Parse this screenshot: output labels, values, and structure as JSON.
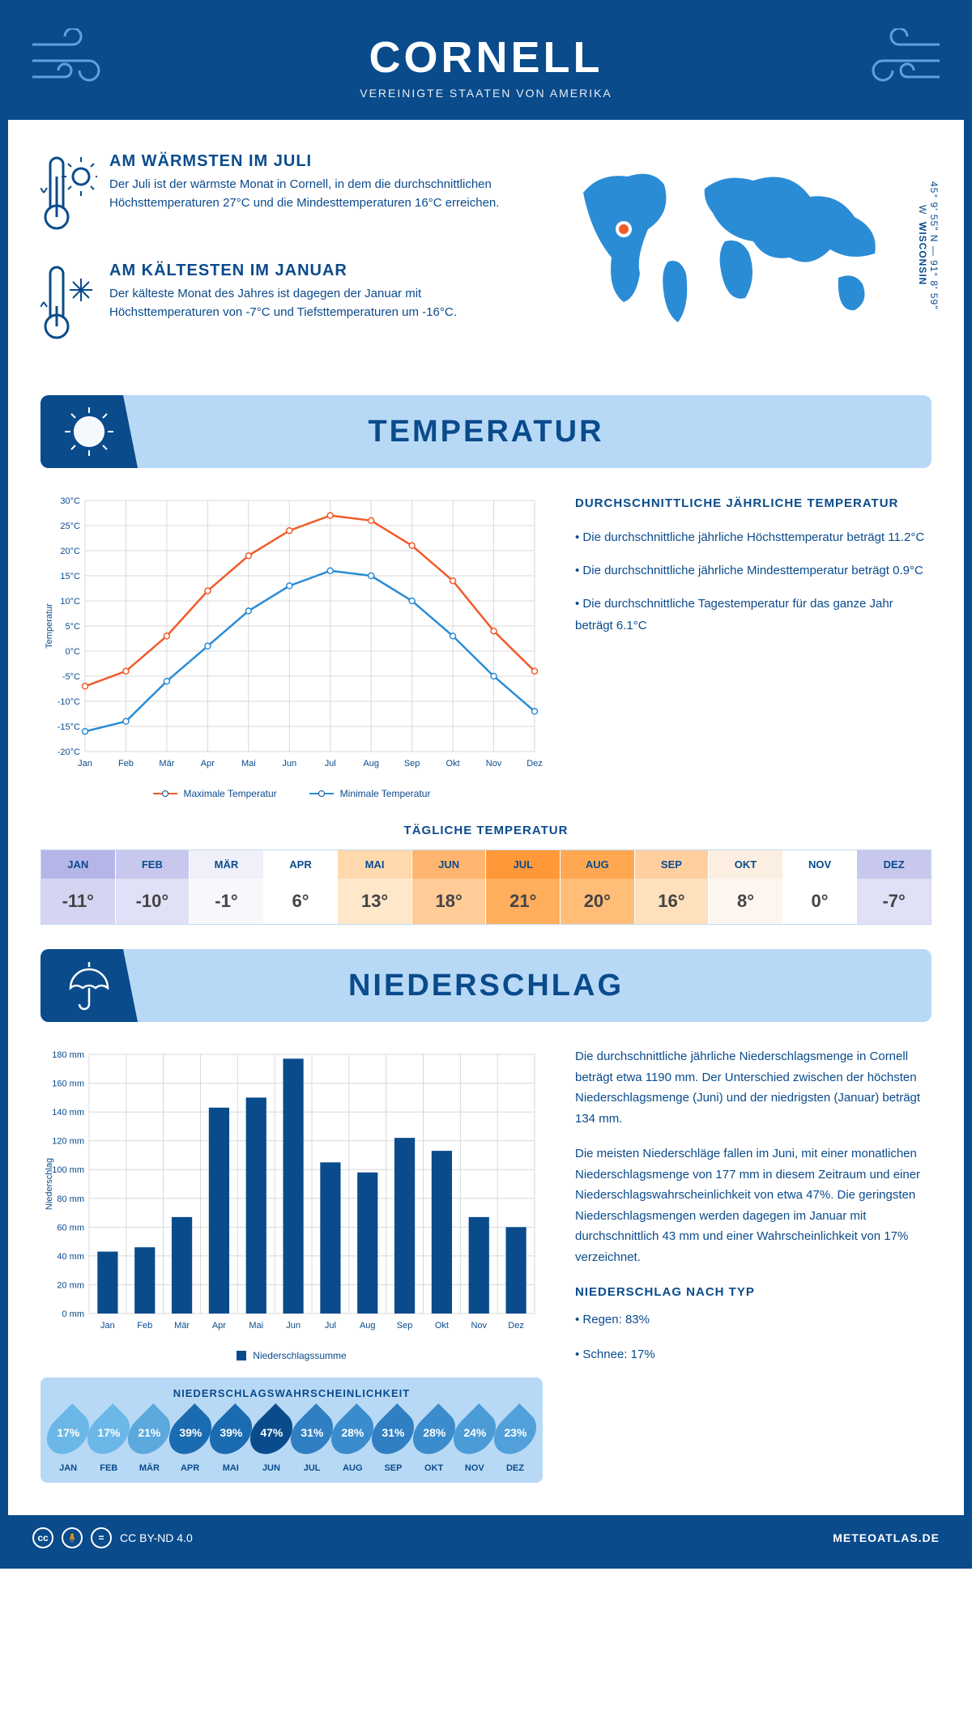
{
  "header": {
    "title": "CORNELL",
    "subtitle": "VEREINIGTE STAATEN VON AMERIKA"
  },
  "coords": {
    "lat": "45° 9' 55\" N",
    "lon": "91° 8' 59\" W",
    "region": "WISCONSIN"
  },
  "summary": {
    "warm": {
      "title": "AM WÄRMSTEN IM JULI",
      "text": "Der Juli ist der wärmste Monat in Cornell, in dem die durchschnittlichen Höchsttemperaturen 27°C und die Mindesttemperaturen 16°C erreichen."
    },
    "cold": {
      "title": "AM KÄLTESTEN IM JANUAR",
      "text": "Der kälteste Monat des Jahres ist dagegen der Januar mit Höchsttemperaturen von -7°C und Tiefsttemperaturen um -16°C."
    }
  },
  "months": [
    "Jan",
    "Feb",
    "Mär",
    "Apr",
    "Mai",
    "Jun",
    "Jul",
    "Aug",
    "Sep",
    "Okt",
    "Nov",
    "Dez"
  ],
  "months_upper": [
    "JAN",
    "FEB",
    "MÄR",
    "APR",
    "MAI",
    "JUN",
    "JUL",
    "AUG",
    "SEP",
    "OKT",
    "NOV",
    "DEZ"
  ],
  "temp_section": {
    "banner": "TEMPERATUR",
    "info_title": "DURCHSCHNITTLICHE JÄHRLICHE TEMPERATUR",
    "bullets": [
      "• Die durchschnittliche jährliche Höchsttemperatur beträgt 11.2°C",
      "• Die durchschnittliche jährliche Mindesttemperatur beträgt 0.9°C",
      "• Die durchschnittliche Tagestemperatur für das ganze Jahr beträgt 6.1°C"
    ],
    "legend_max": "Maximale Temperatur",
    "legend_min": "Minimale Temperatur",
    "ylabel": "Temperatur",
    "chart": {
      "max": [
        -7,
        -4,
        3,
        12,
        19,
        24,
        27,
        26,
        21,
        14,
        4,
        -4
      ],
      "min": [
        -16,
        -14,
        -6,
        1,
        8,
        13,
        16,
        15,
        10,
        3,
        -5,
        -12
      ],
      "ylim": [
        -20,
        30
      ],
      "ytick_step": 5,
      "max_color": "#f15a29",
      "min_color": "#2b8cd6",
      "grid_color": "#d8d8d8",
      "text_color": "#0a4b8c"
    },
    "daily_title": "TÄGLICHE TEMPERATUR",
    "daily": {
      "values": [
        "-11°",
        "-10°",
        "-1°",
        "6°",
        "13°",
        "18°",
        "21°",
        "20°",
        "16°",
        "8°",
        "0°",
        "-7°"
      ],
      "head_colors": [
        "#b5b5e8",
        "#c8c8ef",
        "#f0f0fa",
        "#ffffff",
        "#ffd9ad",
        "#ffb570",
        "#ff9838",
        "#ffa851",
        "#ffcfa0",
        "#fcefe2",
        "#ffffff",
        "#c8c8ef"
      ],
      "val_colors": [
        "#d5d5f2",
        "#e0e0f6",
        "#f7f7fc",
        "#ffffff",
        "#ffe7ca",
        "#ffcb96",
        "#ffae5c",
        "#ffbd78",
        "#ffe0bd",
        "#fdf6ef",
        "#ffffff",
        "#e0e0f6"
      ]
    }
  },
  "precip_section": {
    "banner": "NIEDERSCHLAG",
    "ylabel": "Niederschlag",
    "legend": "Niederschlagssumme",
    "chart": {
      "values": [
        43,
        46,
        67,
        143,
        150,
        177,
        105,
        98,
        122,
        113,
        67,
        60
      ],
      "ylim": [
        0,
        180
      ],
      "ytick_step": 20,
      "bar_color": "#0a4b8c",
      "grid_color": "#d8d8d8",
      "text_color": "#0a4b8c"
    },
    "text1": "Die durchschnittliche jährliche Niederschlagsmenge in Cornell beträgt etwa 1190 mm. Der Unterschied zwischen der höchsten Niederschlagsmenge (Juni) und der niedrigsten (Januar) beträgt 134 mm.",
    "text2": "Die meisten Niederschläge fallen im Juni, mit einer monatlichen Niederschlagsmenge von 177 mm in diesem Zeitraum und einer Niederschlagswahrscheinlichkeit von etwa 47%. Die geringsten Niederschlagsmengen werden dagegen im Januar mit durchschnittlich 43 mm und einer Wahrscheinlichkeit von 17% verzeichnet.",
    "type_title": "NIEDERSCHLAG NACH TYP",
    "type_bullets": [
      "• Regen: 83%",
      "• Schnee: 17%"
    ],
    "prob_title": "NIEDERSCHLAGSWAHRSCHEINLICHKEIT",
    "prob": {
      "values": [
        "17%",
        "17%",
        "21%",
        "39%",
        "39%",
        "47%",
        "31%",
        "28%",
        "31%",
        "28%",
        "24%",
        "23%"
      ],
      "colors": [
        "#6bb8e8",
        "#6bb8e8",
        "#5ba8dd",
        "#1b6bb0",
        "#1b6bb0",
        "#0a4b8c",
        "#2f7fc2",
        "#3b8ccc",
        "#2f7fc2",
        "#3b8ccc",
        "#4b9bd6",
        "#51a0d9"
      ]
    }
  },
  "footer": {
    "license": "CC BY-ND 4.0",
    "site": "METEOATLAS.DE"
  }
}
